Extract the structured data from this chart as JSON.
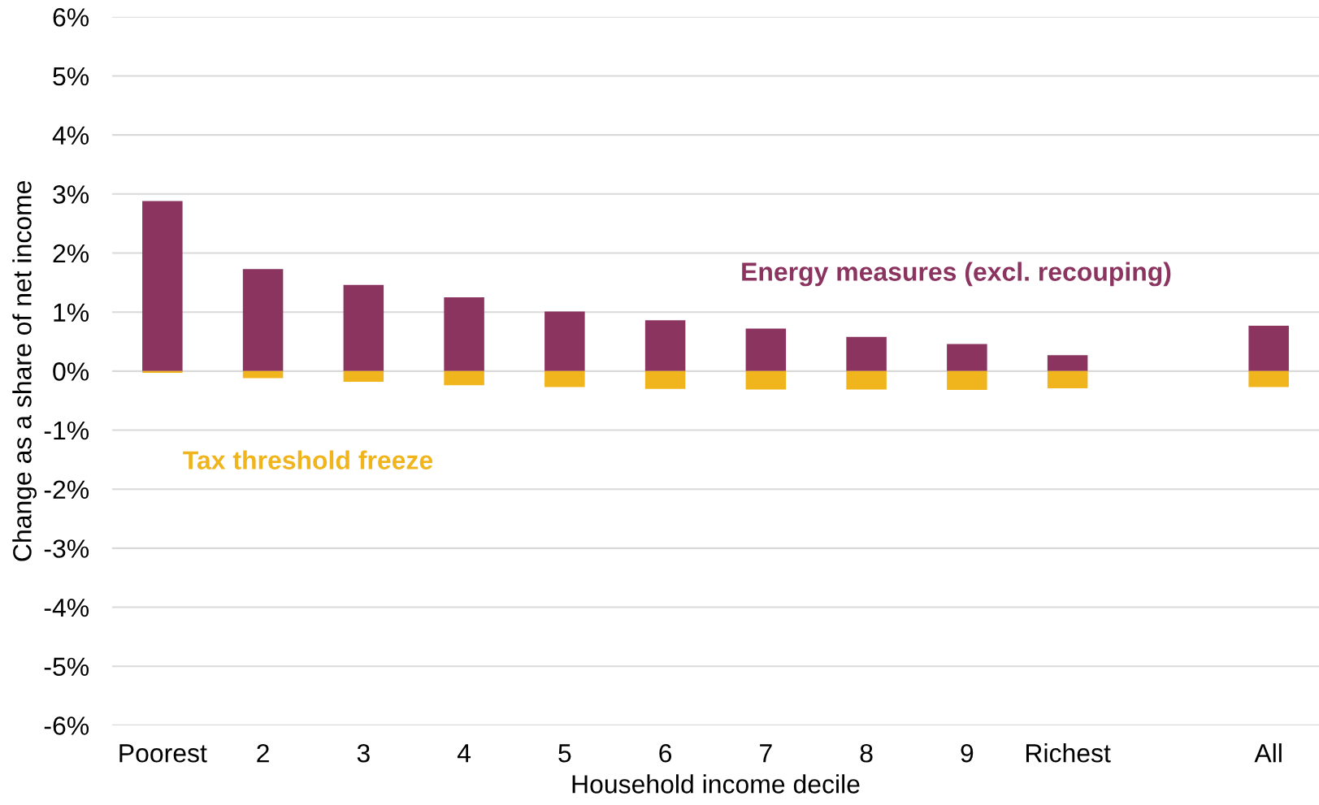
{
  "chart_data": {
    "type": "bar",
    "stacked": true,
    "xlabel": "Household income decile",
    "ylabel": "Change as a share of net income",
    "categories": [
      "Poorest",
      "2",
      "3",
      "4",
      "5",
      "6",
      "7",
      "8",
      "9",
      "Richest",
      null,
      "All"
    ],
    "series": [
      {
        "name": "Energy measures (excl. recouping)",
        "color": "#8b3460",
        "values": [
          2.88,
          1.73,
          1.46,
          1.25,
          1.01,
          0.86,
          0.72,
          0.58,
          0.46,
          0.27,
          null,
          0.77
        ]
      },
      {
        "name": "Tax threshold freeze",
        "color": "#f0b41c",
        "values": [
          -0.03,
          -0.12,
          -0.18,
          -0.24,
          -0.27,
          -0.3,
          -0.31,
          -0.31,
          -0.32,
          -0.29,
          null,
          -0.27
        ]
      }
    ],
    "ylim": [
      -6,
      6
    ],
    "yticks": [
      {
        "value": -6,
        "label": "-6%"
      },
      {
        "value": -5,
        "label": "-5%"
      },
      {
        "value": -4,
        "label": "-4%"
      },
      {
        "value": -3,
        "label": "-3%"
      },
      {
        "value": -2,
        "label": "-2%"
      },
      {
        "value": -1,
        "label": "-1%"
      },
      {
        "value": 0,
        "label": "0%"
      },
      {
        "value": 1,
        "label": "1%"
      },
      {
        "value": 2,
        "label": "2%"
      },
      {
        "value": 3,
        "label": "3%"
      },
      {
        "value": 4,
        "label": "4%"
      },
      {
        "value": 5,
        "label": "5%"
      },
      {
        "value": 6,
        "label": "6%"
      }
    ],
    "grid": "y"
  }
}
